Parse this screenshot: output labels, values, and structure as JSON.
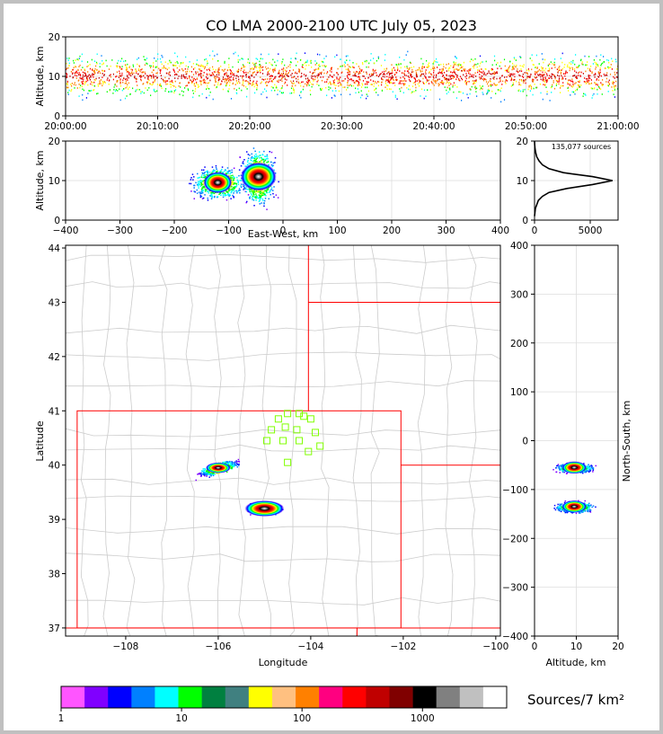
{
  "title": "CO LMA 2000-2100 UTC July 05, 2023",
  "time_height": {
    "ylabel": "Altitude, km",
    "x_ticks": [
      "20:00:00",
      "20:10:00",
      "20:20:00",
      "20:30:00",
      "20:40:00",
      "20:50:00",
      "21:00:00"
    ],
    "y_ticks": [
      "0",
      "10",
      "20"
    ],
    "ylim": [
      0,
      20
    ]
  },
  "ew_height": {
    "xlabel": "East-West, km",
    "ylabel": "Altitude, km",
    "x_ticks": [
      "−400",
      "−300",
      "−200",
      "−100",
      "0",
      "100",
      "200",
      "300",
      "400"
    ],
    "y_ticks": [
      "0",
      "10",
      "20"
    ],
    "xlim": [
      -400,
      400
    ],
    "ylim": [
      0,
      20
    ]
  },
  "histogram": {
    "annotation": "135,077 sources",
    "x_ticks": [
      "0",
      "5000"
    ],
    "y_ticks": [
      "0",
      "10",
      "20"
    ],
    "xlim": [
      0,
      7500
    ],
    "ylim": [
      0,
      20
    ]
  },
  "plan_view": {
    "xlabel": "Longitude",
    "ylabel": "Latitude",
    "x_ticks": [
      "−108",
      "−106",
      "−104",
      "−102",
      "−100"
    ],
    "y_ticks": [
      "37",
      "38",
      "39",
      "40",
      "41",
      "42",
      "43",
      "44"
    ],
    "xlim": [
      -109.3,
      -99.9
    ],
    "ylim": [
      36.85,
      44.05
    ]
  },
  "ns_height": {
    "xlabel": "Altitude, km",
    "ylabel": "North-South, km",
    "x_ticks": [
      "0",
      "10",
      "20"
    ],
    "y_ticks": [
      "400",
      "300",
      "200",
      "100",
      "0",
      "−100",
      "−200",
      "−300",
      "−400"
    ],
    "xlim": [
      0,
      20
    ],
    "ylim": [
      -400,
      400
    ]
  },
  "colorbar": {
    "label": "Sources/7 km²",
    "tick_labels": [
      "1",
      "10",
      "100",
      "1000"
    ],
    "colors": [
      "#ff55ff",
      "#8000ff",
      "#0000ff",
      "#0080ff",
      "#00ffff",
      "#00ff00",
      "#008040",
      "#408080",
      "#ffff00",
      "#ffc080",
      "#ff8000",
      "#ff0080",
      "#ff0000",
      "#c00000",
      "#800000",
      "#000000",
      "#808080",
      "#c0c0c0",
      "#ffffff"
    ]
  },
  "chart_data": {
    "type": "heatmap",
    "title": "CO LMA 2000-2100 UTC July 05, 2023",
    "total_sources": 135077,
    "colorbar_scale": "log",
    "storm_cells_plan": [
      {
        "lon": -106.0,
        "lat": 39.95
      },
      {
        "lon": -105.0,
        "lat": 39.2
      }
    ],
    "stations_lonlat": [
      [
        -104.7,
        40.85
      ],
      [
        -104.5,
        40.95
      ],
      [
        -104.25,
        40.95
      ],
      [
        -104.15,
        40.9
      ],
      [
        -104.0,
        40.85
      ],
      [
        -104.85,
        40.65
      ],
      [
        -104.55,
        40.7
      ],
      [
        -104.3,
        40.65
      ],
      [
        -103.9,
        40.6
      ],
      [
        -104.95,
        40.45
      ],
      [
        -104.6,
        40.45
      ],
      [
        -104.25,
        40.45
      ],
      [
        -103.8,
        40.35
      ],
      [
        -104.05,
        40.25
      ],
      [
        -104.5,
        40.05
      ]
    ],
    "altitude_histogram": {
      "y_km": [
        1,
        3,
        5,
        6,
        7,
        8,
        9,
        10,
        11,
        12,
        13,
        14,
        15,
        16,
        17,
        18,
        19,
        20
      ],
      "counts": [
        0,
        80,
        350,
        700,
        1300,
        2900,
        5200,
        7000,
        5200,
        2600,
        1300,
        700,
        400,
        200,
        110,
        50,
        20,
        0
      ]
    },
    "ew_cells": [
      {
        "x_km": -120,
        "z_km": 9.5
      },
      {
        "x_km": -45,
        "z_km": 11
      }
    ],
    "ns_cells": [
      {
        "y_km": -55,
        "z_km": 9.5
      },
      {
        "y_km": -135,
        "z_km": 9.5
      }
    ]
  }
}
